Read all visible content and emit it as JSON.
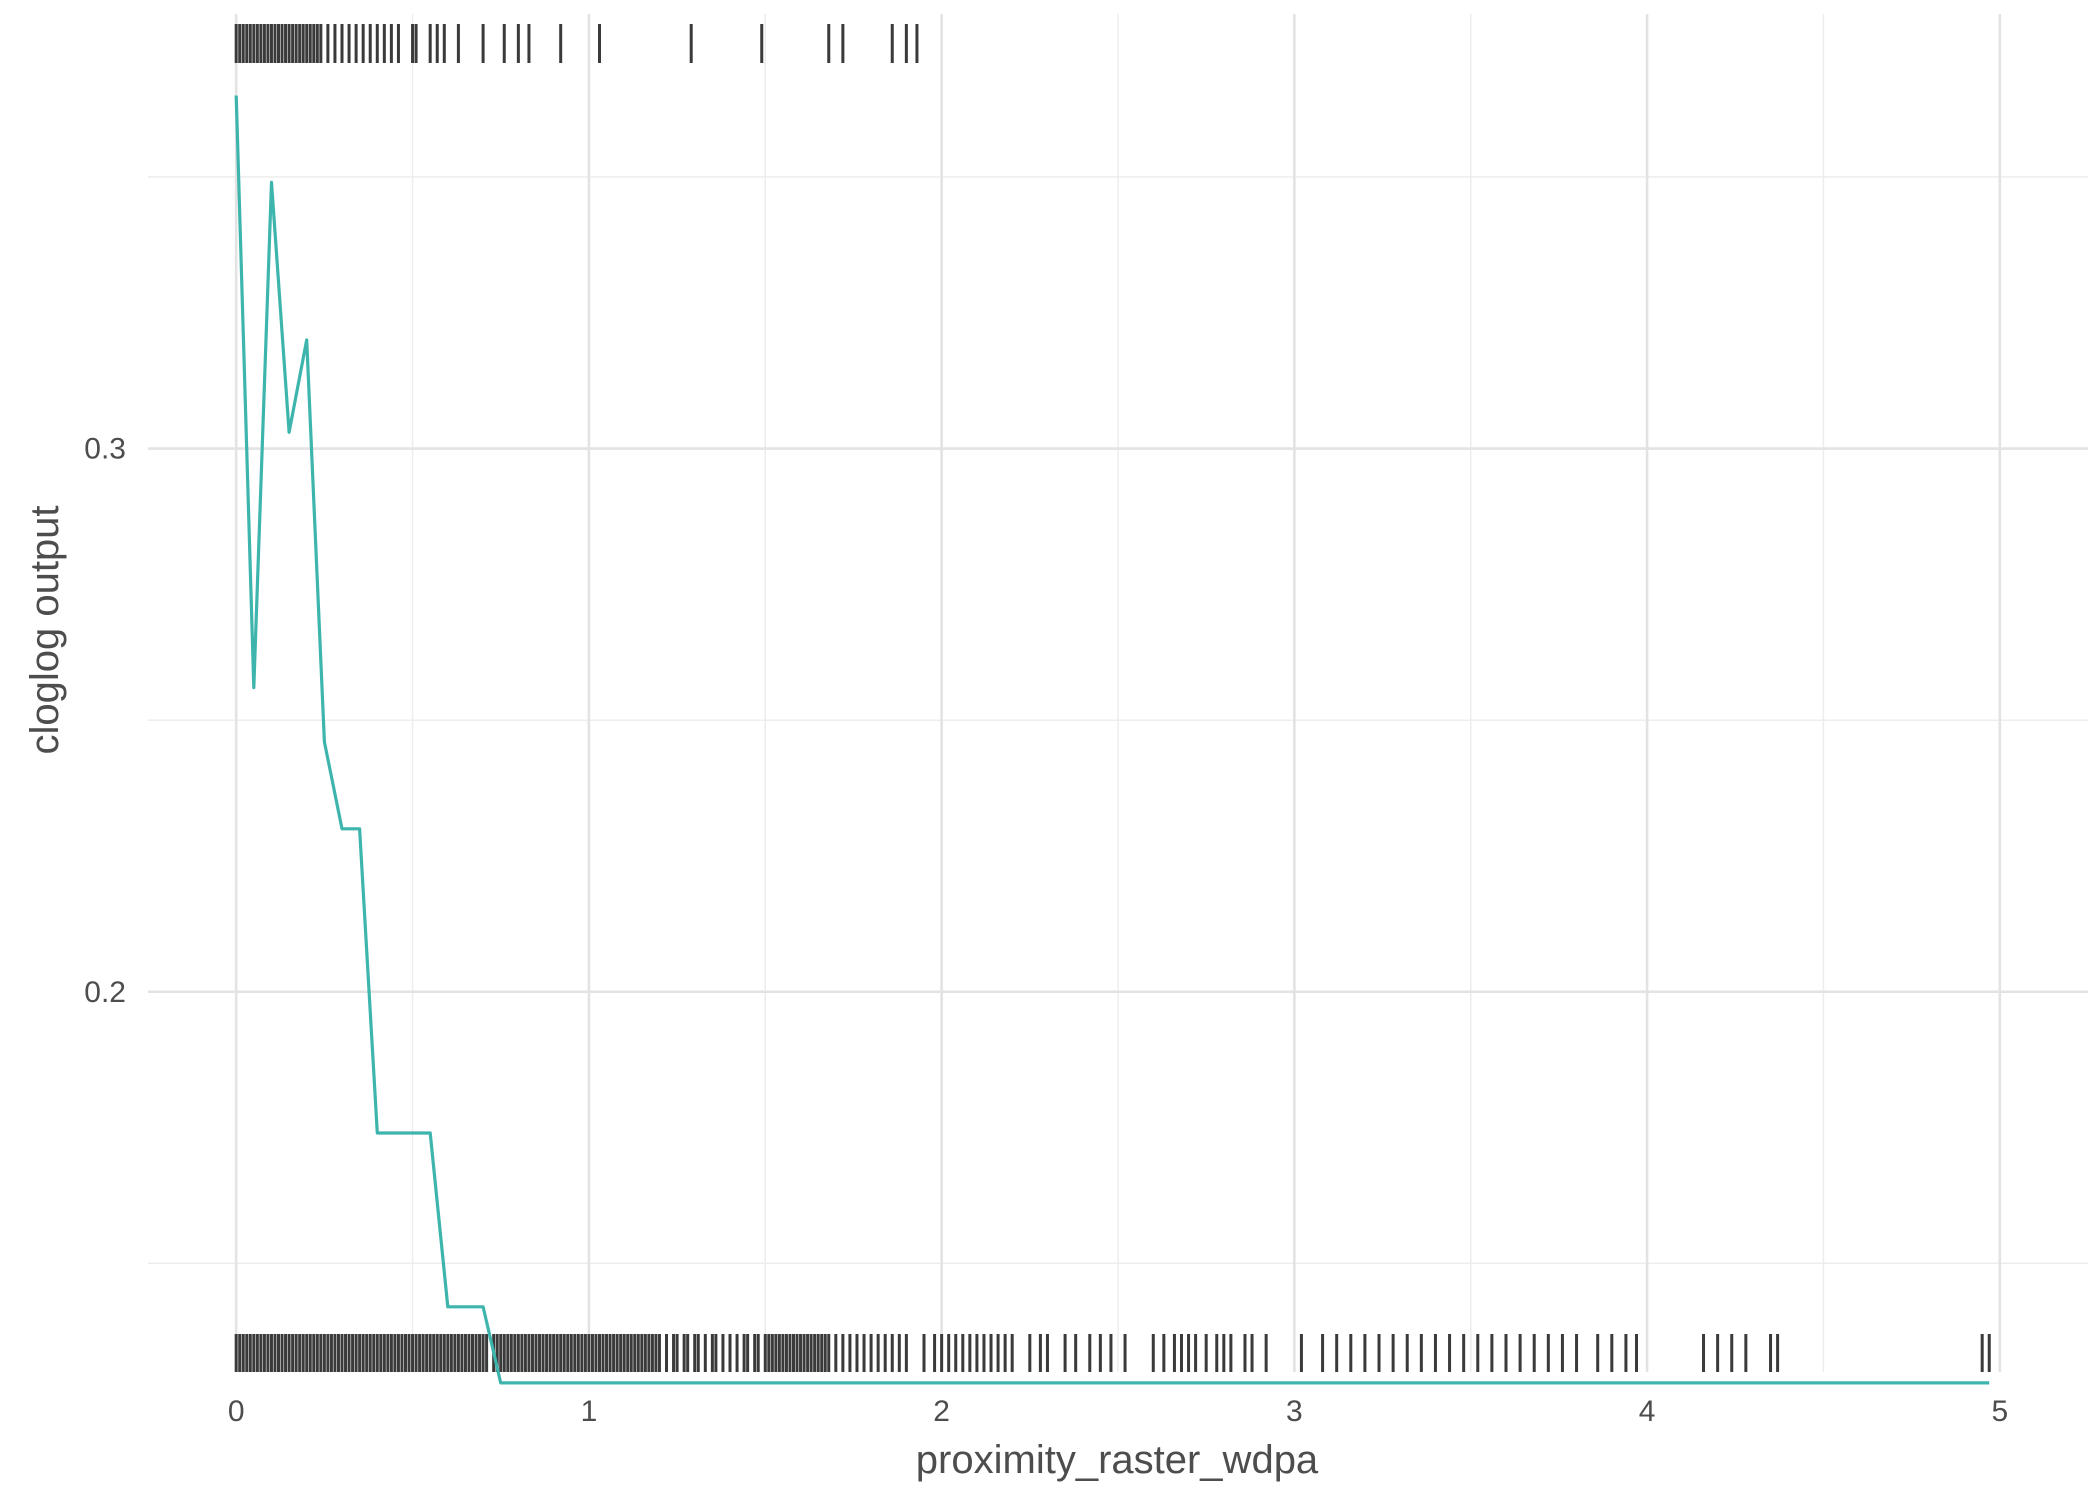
{
  "chart_data": {
    "type": "line",
    "title": "",
    "xlabel": "proximity_raster_wdpa",
    "ylabel": "cloglog output",
    "xlim": [
      -0.25,
      5.25
    ],
    "ylim": [
      0.13,
      0.38
    ],
    "x_ticks": [
      0,
      1,
      2,
      3,
      4,
      5
    ],
    "x_tick_labels": [
      "0",
      "1",
      "2",
      "3",
      "4",
      "5"
    ],
    "x_minor_ticks": [
      0.5,
      1.5,
      2.5,
      3.5,
      4.5
    ],
    "y_ticks": [
      0.2,
      0.3
    ],
    "y_tick_labels": [
      "0.2",
      "0.3"
    ],
    "y_minor_ticks": [
      0.15,
      0.25,
      0.35
    ],
    "grid": true,
    "legend": "none",
    "series": [
      {
        "color": "#3db5ad",
        "x": [
          0,
          0.05,
          0.1,
          0.15,
          0.2,
          0.25,
          0.3,
          0.35,
          0.4,
          0.45,
          0.5,
          0.55,
          0.6,
          0.65,
          0.7,
          0.75,
          0.8,
          1.0,
          2.0,
          3.0,
          4.0,
          4.97
        ],
        "y": [
          0.365,
          0.256,
          0.349,
          0.303,
          0.32,
          0.246,
          0.23,
          0.23,
          0.174,
          0.174,
          0.174,
          0.174,
          0.142,
          0.142,
          0.142,
          0.128,
          0.128,
          0.128,
          0.128,
          0.128,
          0.128,
          0.128
        ]
      }
    ],
    "rug_color": "#3a3a3a",
    "rug_top_x": [
      0.0,
      0.01,
      0.02,
      0.03,
      0.04,
      0.05,
      0.06,
      0.07,
      0.08,
      0.09,
      0.1,
      0.11,
      0.12,
      0.13,
      0.14,
      0.15,
      0.16,
      0.17,
      0.18,
      0.19,
      0.2,
      0.21,
      0.22,
      0.23,
      0.24,
      0.26,
      0.28,
      0.3,
      0.32,
      0.34,
      0.36,
      0.38,
      0.4,
      0.42,
      0.44,
      0.46,
      0.5,
      0.51,
      0.55,
      0.57,
      0.59,
      0.63,
      0.7,
      0.76,
      0.8,
      0.83,
      0.92,
      1.03,
      1.29,
      1.49,
      1.68,
      1.72,
      1.86,
      1.9,
      1.93
    ],
    "rug_bottom_x": [
      0.0,
      0.01,
      0.02,
      0.03,
      0.04,
      0.05,
      0.06,
      0.07,
      0.08,
      0.09,
      0.1,
      0.11,
      0.12,
      0.13,
      0.14,
      0.15,
      0.16,
      0.17,
      0.18,
      0.19,
      0.2,
      0.21,
      0.22,
      0.23,
      0.24,
      0.25,
      0.26,
      0.27,
      0.28,
      0.29,
      0.3,
      0.31,
      0.32,
      0.33,
      0.34,
      0.35,
      0.36,
      0.37,
      0.38,
      0.39,
      0.4,
      0.41,
      0.42,
      0.43,
      0.44,
      0.45,
      0.46,
      0.47,
      0.48,
      0.49,
      0.5,
      0.51,
      0.52,
      0.53,
      0.54,
      0.55,
      0.56,
      0.57,
      0.58,
      0.59,
      0.6,
      0.61,
      0.62,
      0.63,
      0.64,
      0.65,
      0.66,
      0.67,
      0.68,
      0.69,
      0.7,
      0.71,
      0.73,
      0.74,
      0.75,
      0.76,
      0.77,
      0.78,
      0.79,
      0.8,
      0.81,
      0.82,
      0.83,
      0.84,
      0.85,
      0.86,
      0.87,
      0.88,
      0.89,
      0.9,
      0.91,
      0.92,
      0.93,
      0.94,
      0.95,
      0.96,
      0.97,
      0.98,
      0.99,
      1.0,
      1.01,
      1.02,
      1.03,
      1.04,
      1.05,
      1.06,
      1.07,
      1.08,
      1.09,
      1.1,
      1.11,
      1.12,
      1.13,
      1.14,
      1.15,
      1.16,
      1.17,
      1.18,
      1.19,
      1.2,
      1.22,
      1.24,
      1.25,
      1.27,
      1.28,
      1.3,
      1.31,
      1.33,
      1.35,
      1.36,
      1.38,
      1.4,
      1.42,
      1.44,
      1.45,
      1.47,
      1.48,
      1.5,
      1.51,
      1.52,
      1.53,
      1.54,
      1.55,
      1.56,
      1.57,
      1.58,
      1.59,
      1.6,
      1.61,
      1.62,
      1.63,
      1.64,
      1.65,
      1.66,
      1.67,
      1.68,
      1.7,
      1.72,
      1.74,
      1.76,
      1.78,
      1.8,
      1.82,
      1.84,
      1.86,
      1.88,
      1.9,
      1.95,
      1.98,
      2.0,
      2.02,
      2.04,
      2.06,
      2.08,
      2.1,
      2.12,
      2.14,
      2.16,
      2.18,
      2.2,
      2.25,
      2.28,
      2.3,
      2.35,
      2.38,
      2.42,
      2.45,
      2.48,
      2.52,
      2.6,
      2.63,
      2.66,
      2.68,
      2.7,
      2.72,
      2.75,
      2.78,
      2.8,
      2.82,
      2.86,
      2.88,
      2.92,
      3.02,
      3.08,
      3.12,
      3.16,
      3.2,
      3.24,
      3.28,
      3.32,
      3.36,
      3.4,
      3.44,
      3.48,
      3.52,
      3.56,
      3.6,
      3.64,
      3.68,
      3.72,
      3.76,
      3.8,
      3.86,
      3.9,
      3.94,
      3.97,
      4.16,
      4.2,
      4.24,
      4.28,
      4.35,
      4.37,
      4.95,
      4.97
    ]
  }
}
